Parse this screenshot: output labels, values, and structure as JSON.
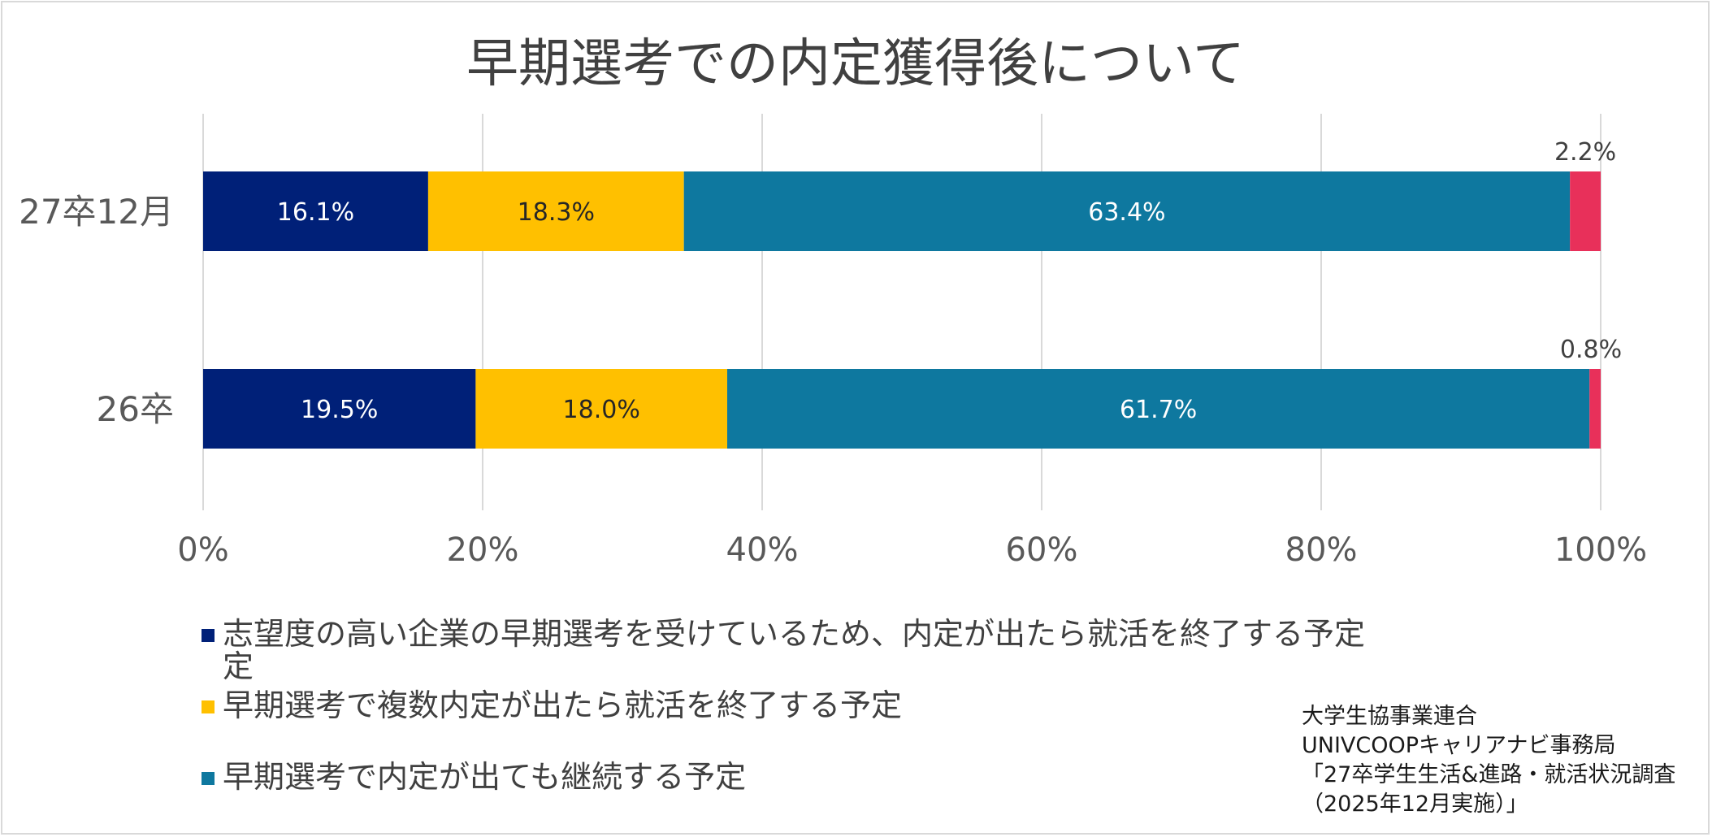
{
  "chart_data": {
    "type": "bar",
    "orientation": "horizontal",
    "stacked": "percent",
    "title": "早期選考での内定獲得後について",
    "categories": [
      "27卒12月",
      "26卒"
    ],
    "series": [
      {
        "name": "志望度の高い企業の早期選考を受けているため、内定が出たら就活を終了する予定",
        "color": "#002078",
        "values": [
          16.1,
          19.5
        ],
        "labels": [
          "16.1%",
          "19.5%"
        ],
        "label_color": "#ffffff"
      },
      {
        "name": "早期選考で複数内定が出たら就活を終了する予定",
        "color": "#ffc000",
        "values": [
          18.3,
          18.0
        ],
        "labels": [
          "18.3%",
          "18.0%"
        ],
        "label_color": "#262626"
      },
      {
        "name": "早期選考で内定が出ても継続する予定",
        "color": "#0e789f",
        "values": [
          63.4,
          61.7
        ],
        "labels": [
          "63.4%",
          "61.7%"
        ],
        "label_color": "#ffffff"
      },
      {
        "color": "#e8305a",
        "values": [
          2.2,
          0.8
        ],
        "labels": [
          "2.2%",
          "0.8%"
        ],
        "label_color": "#404040"
      }
    ],
    "x_ticks": [
      "0%",
      "20%",
      "40%",
      "60%",
      "80%",
      "100%"
    ],
    "xlim": [
      0,
      100
    ],
    "grid": true,
    "legend_position": "bottom-left"
  },
  "legend_continuation": "定",
  "source_lines": [
    "大学生協事業連合",
    "UNIVCOOPキャリアナビ事務局",
    "「27卒学生生活&進路・就活状況調査",
    "（2025年12月実施）」"
  ]
}
